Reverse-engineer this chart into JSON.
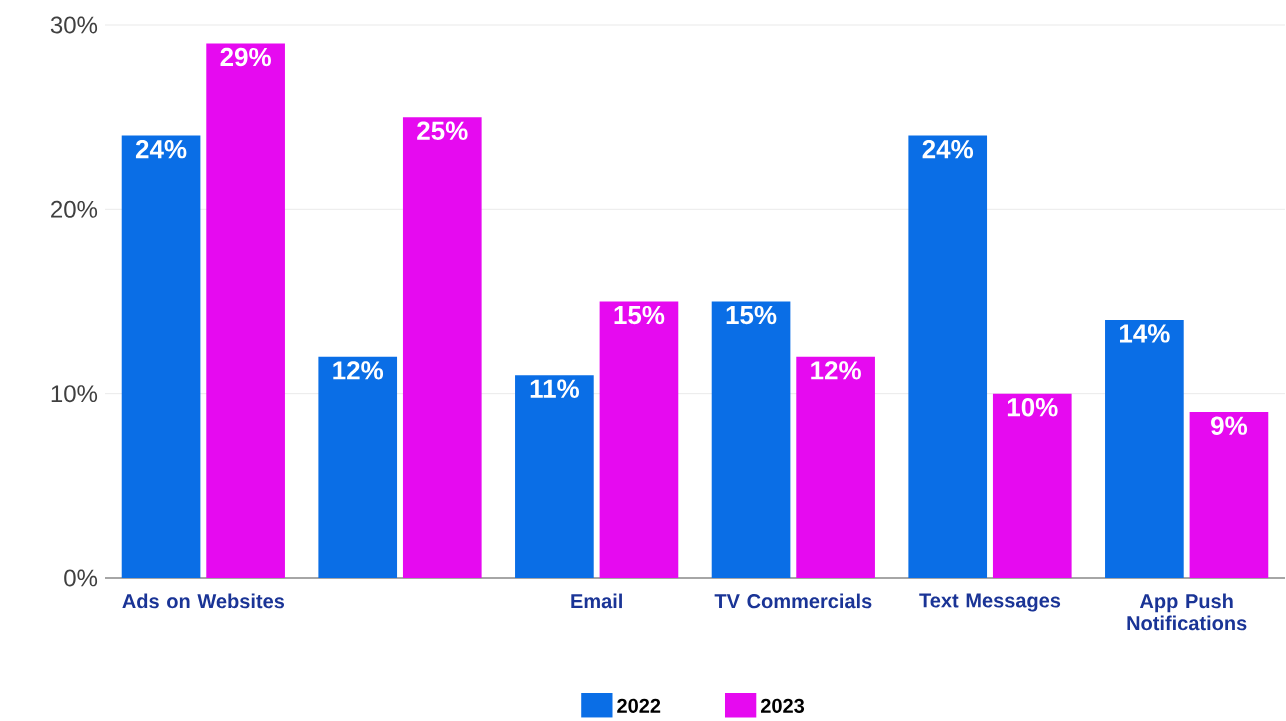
{
  "chart_data": {
    "type": "bar",
    "categories": [
      "Ads on Websites",
      null,
      "Email",
      "TV Commercials",
      "Text Messages",
      "App Push Notifications"
    ],
    "series": [
      {
        "name": "2022",
        "color": "#0a6ee6",
        "values": [
          24,
          12,
          11,
          15,
          24,
          14
        ],
        "value_labels": [
          "24%",
          "12%",
          "11%",
          "15%",
          "24%",
          "14%"
        ]
      },
      {
        "name": "2023",
        "color": "#e60af0",
        "values": [
          29,
          25,
          15,
          12,
          10,
          9
        ],
        "value_labels": [
          "29%",
          "25%",
          "15%",
          "12%",
          "10%",
          "9%"
        ]
      }
    ],
    "ylim": [
      0,
      30
    ],
    "yticks": [
      {
        "value": 0,
        "label": "0%"
      },
      {
        "value": 10,
        "label": "10%"
      },
      {
        "value": 20,
        "label": "20%"
      },
      {
        "value": 30,
        "label": "30%"
      }
    ],
    "grid": "y",
    "legend": "bottom"
  }
}
